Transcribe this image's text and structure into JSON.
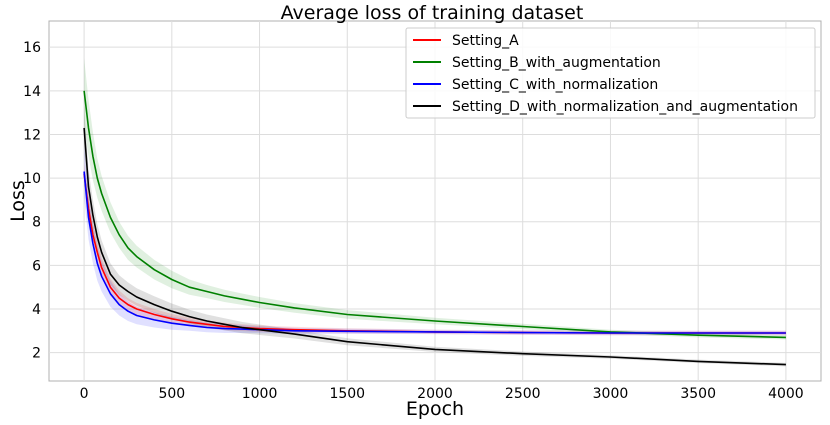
{
  "chart_data": {
    "type": "line",
    "title": "Average loss of training dataset",
    "xlabel": "Epoch",
    "ylabel": "Loss",
    "xlim": [
      -200,
      4200
    ],
    "ylim": [
      0.7,
      17.2
    ],
    "xticks": [
      0,
      500,
      1000,
      1500,
      2000,
      2500,
      3000,
      3500,
      4000
    ],
    "yticks": [
      2,
      4,
      6,
      8,
      10,
      12,
      14,
      16
    ],
    "grid": true,
    "legend_position": "top-right",
    "series": [
      {
        "name": "Setting_A",
        "color": "#ff0000",
        "x": [
          0,
          25,
          50,
          75,
          100,
          150,
          200,
          250,
          300,
          400,
          500,
          600,
          700,
          800,
          900,
          1000,
          1200,
          1500,
          2000,
          2500,
          3000,
          3500,
          4000
        ],
        "y": [
          10.2,
          8.6,
          7.4,
          6.6,
          5.9,
          5.0,
          4.5,
          4.2,
          4.0,
          3.75,
          3.55,
          3.4,
          3.3,
          3.2,
          3.15,
          3.1,
          3.05,
          3.0,
          2.95,
          2.92,
          2.9,
          2.9,
          2.9
        ],
        "band": [
          0.5,
          0.6,
          0.55,
          0.5,
          0.45,
          0.4,
          0.35,
          0.3,
          0.28,
          0.25,
          0.22,
          0.2,
          0.18,
          0.17,
          0.16,
          0.15,
          0.14,
          0.12,
          0.1,
          0.1,
          0.1,
          0.1,
          0.1
        ]
      },
      {
        "name": "Setting_B_with_augmentation",
        "color": "#008000",
        "x": [
          0,
          25,
          50,
          75,
          100,
          150,
          200,
          250,
          300,
          400,
          500,
          600,
          700,
          800,
          900,
          1000,
          1200,
          1500,
          2000,
          2500,
          3000,
          3500,
          4000
        ],
        "y": [
          14.0,
          12.3,
          11.0,
          10.0,
          9.3,
          8.2,
          7.4,
          6.8,
          6.4,
          5.8,
          5.35,
          5.0,
          4.8,
          4.6,
          4.45,
          4.3,
          4.05,
          3.75,
          3.45,
          3.2,
          2.95,
          2.8,
          2.7
        ],
        "band": [
          1.5,
          1.3,
          1.1,
          0.9,
          0.8,
          0.7,
          0.6,
          0.55,
          0.5,
          0.45,
          0.4,
          0.35,
          0.3,
          0.28,
          0.26,
          0.25,
          0.22,
          0.2,
          0.15,
          0.12,
          0.1,
          0.1,
          0.1
        ]
      },
      {
        "name": "Setting_C_with_normalization",
        "color": "#0000ff",
        "x": [
          0,
          25,
          50,
          75,
          100,
          150,
          200,
          250,
          300,
          400,
          500,
          600,
          700,
          800,
          900,
          1000,
          1200,
          1500,
          2000,
          2500,
          3000,
          3500,
          4000
        ],
        "y": [
          10.3,
          8.2,
          7.0,
          6.1,
          5.5,
          4.7,
          4.2,
          3.9,
          3.7,
          3.5,
          3.35,
          3.25,
          3.15,
          3.1,
          3.08,
          3.05,
          3.0,
          2.98,
          2.95,
          2.92,
          2.9,
          2.9,
          2.9
        ],
        "band": [
          1.2,
          1.0,
          0.9,
          0.8,
          0.7,
          0.6,
          0.5,
          0.45,
          0.4,
          0.35,
          0.3,
          0.25,
          0.22,
          0.2,
          0.18,
          0.16,
          0.14,
          0.12,
          0.1,
          0.1,
          0.1,
          0.1,
          0.1
        ]
      },
      {
        "name": "Setting_D_with_normalization_and_augmentation",
        "color": "#000000",
        "x": [
          0,
          25,
          50,
          75,
          100,
          150,
          200,
          250,
          300,
          400,
          500,
          600,
          700,
          800,
          900,
          1000,
          1200,
          1500,
          2000,
          2500,
          3000,
          3500,
          4000
        ],
        "y": [
          12.3,
          9.6,
          8.3,
          7.3,
          6.6,
          5.6,
          5.1,
          4.8,
          4.55,
          4.2,
          3.9,
          3.65,
          3.45,
          3.3,
          3.15,
          3.05,
          2.85,
          2.5,
          2.15,
          1.95,
          1.8,
          1.6,
          1.45
        ],
        "band": [
          1.0,
          0.8,
          0.7,
          0.6,
          0.55,
          0.5,
          0.45,
          0.42,
          0.4,
          0.38,
          0.35,
          0.32,
          0.3,
          0.28,
          0.26,
          0.24,
          0.2,
          0.16,
          0.12,
          0.1,
          0.08,
          0.08,
          0.08
        ]
      }
    ]
  }
}
